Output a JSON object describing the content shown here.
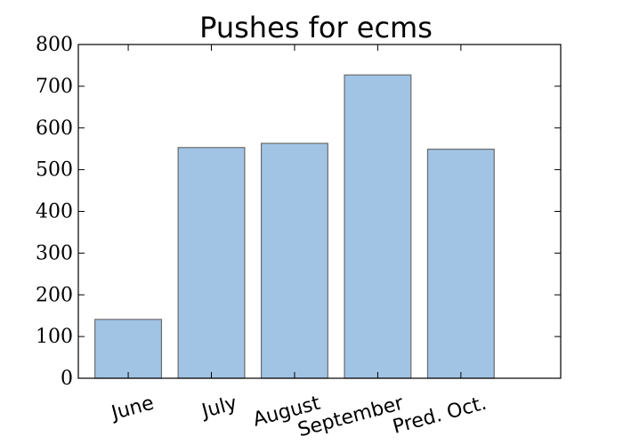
{
  "chart_data": {
    "type": "bar",
    "title": "Pushes for ecms",
    "xlabel": "",
    "ylabel": "",
    "categories": [
      "June",
      "July",
      "August",
      "September",
      "Pred. Oct."
    ],
    "values": [
      141,
      553,
      563,
      727,
      549
    ],
    "ylim": [
      0,
      800
    ],
    "yticks": [
      "0",
      "100",
      "200",
      "300",
      "400",
      "500",
      "600",
      "700",
      "800"
    ],
    "grid": false,
    "legend": "none",
    "bar_color": "#a1c4e5",
    "bar_edge_color": "#6b6b6b"
  }
}
